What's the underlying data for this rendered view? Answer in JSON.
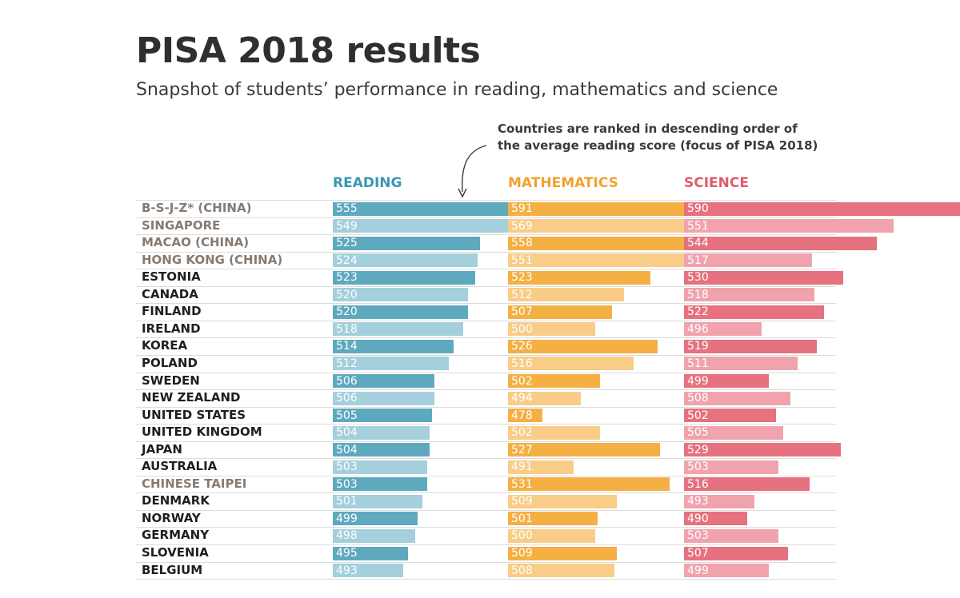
{
  "title": "PISA 2018 results",
  "subtitle": "Snapshot of students’ performance in reading, mathematics and science",
  "annotation": {
    "line1": "Countries are ranked in descending order of",
    "line2": "the average reading score (focus of PISA 2018)"
  },
  "chart_data": {
    "type": "bar",
    "columns": [
      {
        "name": "READING",
        "color": "#3a97b3",
        "color_dark": "#5fa9bf",
        "color_light": "#a4cfdc"
      },
      {
        "name": "MATHEMATICS",
        "color": "#f2a12e",
        "color_dark": "#f4b043",
        "color_light": "#f9cc88"
      },
      {
        "name": "SCIENCE",
        "color": "#e05a6c",
        "color_dark": "#e6717f",
        "color_light": "#f0a3ad"
      }
    ],
    "categories": [
      "B-S-J-Z* (CHINA)",
      "SINGAPORE",
      "MACAO (CHINA)",
      "HONG KONG (CHINA)",
      "ESTONIA",
      "CANADA",
      "FINLAND",
      "IRELAND",
      "KOREA",
      "POLAND",
      "SWEDEN",
      "NEW ZEALAND",
      "UNITED STATES",
      "UNITED KINGDOM",
      "JAPAN",
      "AUSTRALIA",
      "CHINESE TAIPEI",
      "DENMARK",
      "NORWAY",
      "GERMANY",
      "SLOVENIA",
      "BELGIUM"
    ],
    "highlighted_categories": [
      "B-S-J-Z* (CHINA)",
      "SINGAPORE",
      "MACAO (CHINA)",
      "HONG KONG (CHINA)",
      "CHINESE TAIPEI"
    ],
    "series": [
      {
        "name": "READING",
        "values": [
          555,
          549,
          525,
          524,
          523,
          520,
          520,
          518,
          514,
          512,
          506,
          506,
          505,
          504,
          504,
          503,
          503,
          501,
          499,
          498,
          495,
          493
        ]
      },
      {
        "name": "MATHEMATICS",
        "values": [
          591,
          569,
          558,
          551,
          523,
          512,
          507,
          500,
          526,
          516,
          502,
          494,
          478,
          502,
          527,
          491,
          531,
          509,
          501,
          500,
          509,
          508
        ]
      },
      {
        "name": "SCIENCE",
        "values": [
          590,
          551,
          544,
          517,
          530,
          518,
          522,
          496,
          519,
          511,
          499,
          508,
          502,
          505,
          529,
          503,
          516,
          493,
          490,
          503,
          507,
          499
        ]
      }
    ],
    "label_colors": {
      "normal": "#1f1f1f",
      "highlighted": "#857b73"
    }
  }
}
